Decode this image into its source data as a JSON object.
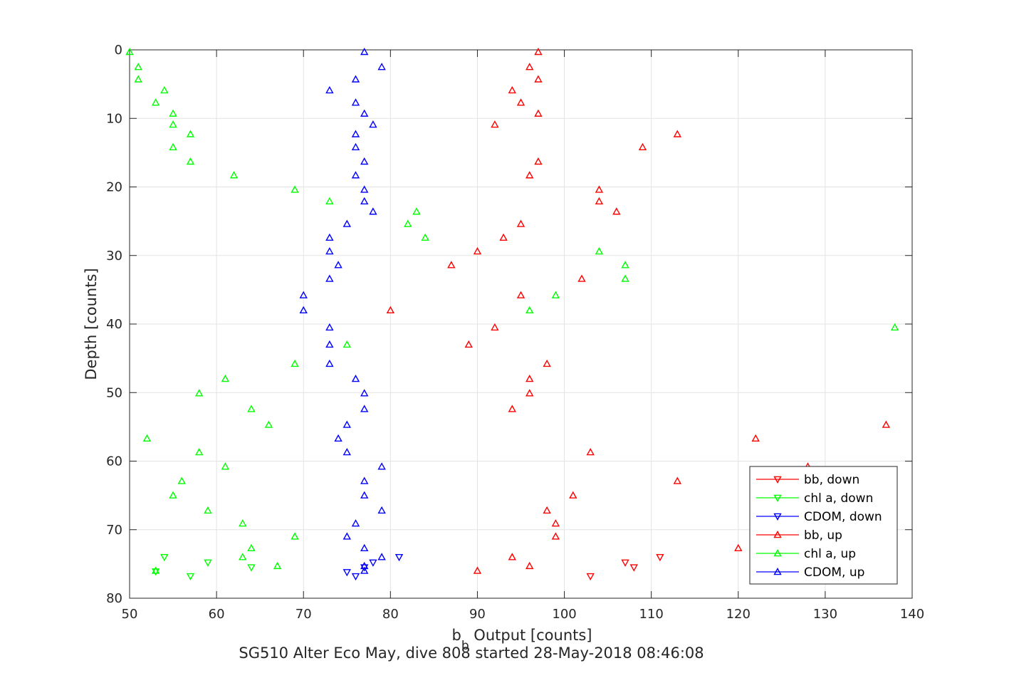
{
  "chart_data": {
    "type": "scatter",
    "title": "SG510 Alter Eco May, dive 808 started 28-May-2018 08:46:08",
    "xlabel_main": "b",
    "xlabel_sub": "b",
    "xlabel_rest": " Output [counts]",
    "ylabel": "Depth [counts]",
    "xlim": [
      50,
      140
    ],
    "ylim": [
      0,
      80
    ],
    "y_reversed": true,
    "grid": true,
    "xticks": [
      50,
      60,
      70,
      80,
      90,
      100,
      110,
      120,
      130,
      140
    ],
    "yticks": [
      0,
      10,
      20,
      30,
      40,
      50,
      60,
      70,
      80
    ],
    "legend_position": "bottom-right",
    "series": [
      {
        "name": "bb, down",
        "color": "#ff0000",
        "marker": "triangle-down",
        "points": [
          [
            103,
            76.8
          ],
          [
            107,
            74.8
          ],
          [
            108,
            75.5
          ],
          [
            111,
            74
          ]
        ]
      },
      {
        "name": "chl a, down",
        "color": "#00ff00",
        "marker": "triangle-down",
        "points": [
          [
            53,
            76.1
          ],
          [
            54,
            74
          ],
          [
            57,
            76.8
          ],
          [
            59,
            74.8
          ],
          [
            64,
            75.5
          ]
        ]
      },
      {
        "name": "CDOM, down",
        "color": "#0000ff",
        "marker": "triangle-down",
        "points": [
          [
            75,
            76.2
          ],
          [
            76,
            76.8
          ],
          [
            77,
            75.5
          ],
          [
            78,
            74.8
          ],
          [
            81,
            74
          ]
        ]
      },
      {
        "name": "bb, up",
        "color": "#ff0000",
        "marker": "triangle-up",
        "points": [
          [
            97,
            0.3
          ],
          [
            96,
            2.5
          ],
          [
            97,
            4.3
          ],
          [
            94,
            5.9
          ],
          [
            95,
            7.7
          ],
          [
            97,
            9.3
          ],
          [
            92,
            10.9
          ],
          [
            113,
            12.3
          ],
          [
            109,
            14.2
          ],
          [
            97,
            16.3
          ],
          [
            96,
            18.3
          ],
          [
            104,
            20.4
          ],
          [
            104,
            22.1
          ],
          [
            106,
            23.6
          ],
          [
            95,
            25.4
          ],
          [
            93,
            27.4
          ],
          [
            90,
            29.4
          ],
          [
            87,
            31.4
          ],
          [
            102,
            33.4
          ],
          [
            95,
            35.8
          ],
          [
            80,
            38
          ],
          [
            92,
            40.5
          ],
          [
            89,
            43
          ],
          [
            98,
            45.8
          ],
          [
            96,
            48
          ],
          [
            96,
            50.1
          ],
          [
            94,
            52.4
          ],
          [
            137,
            54.7
          ],
          [
            122,
            56.7
          ],
          [
            103,
            58.7
          ],
          [
            128,
            60.8
          ],
          [
            113,
            62.9
          ],
          [
            101,
            65
          ],
          [
            98,
            67.2
          ],
          [
            99,
            69.1
          ],
          [
            99,
            71
          ],
          [
            120,
            72.7
          ],
          [
            94,
            74
          ],
          [
            96,
            75.3
          ],
          [
            90,
            76
          ]
        ]
      },
      {
        "name": "chl a, up",
        "color": "#00ff00",
        "marker": "triangle-up",
        "points": [
          [
            50,
            0.3
          ],
          [
            51,
            2.5
          ],
          [
            51,
            4.3
          ],
          [
            54,
            5.9
          ],
          [
            53,
            7.7
          ],
          [
            55,
            9.3
          ],
          [
            55,
            10.9
          ],
          [
            57,
            12.3
          ],
          [
            55,
            14.2
          ],
          [
            57,
            16.3
          ],
          [
            62,
            18.3
          ],
          [
            69,
            20.4
          ],
          [
            73,
            22.1
          ],
          [
            83,
            23.6
          ],
          [
            82,
            25.4
          ],
          [
            84,
            27.4
          ],
          [
            104,
            29.4
          ],
          [
            107,
            31.4
          ],
          [
            107,
            33.4
          ],
          [
            99,
            35.8
          ],
          [
            96,
            38
          ],
          [
            138,
            40.5
          ],
          [
            75,
            43
          ],
          [
            69,
            45.8
          ],
          [
            61,
            48
          ],
          [
            58,
            50.1
          ],
          [
            64,
            52.4
          ],
          [
            66,
            54.7
          ],
          [
            52,
            56.7
          ],
          [
            58,
            58.7
          ],
          [
            61,
            60.8
          ],
          [
            56,
            62.9
          ],
          [
            55,
            65
          ],
          [
            59,
            67.2
          ],
          [
            63,
            69.1
          ],
          [
            69,
            71
          ],
          [
            64,
            72.7
          ],
          [
            63,
            74
          ],
          [
            67,
            75.3
          ],
          [
            53,
            76
          ]
        ]
      },
      {
        "name": "CDOM, up",
        "color": "#0000ff",
        "marker": "triangle-up",
        "points": [
          [
            77,
            0.3
          ],
          [
            79,
            2.5
          ],
          [
            76,
            4.3
          ],
          [
            73,
            5.9
          ],
          [
            76,
            7.7
          ],
          [
            77,
            9.3
          ],
          [
            78,
            10.9
          ],
          [
            76,
            12.3
          ],
          [
            76,
            14.2
          ],
          [
            77,
            16.3
          ],
          [
            76,
            18.3
          ],
          [
            77,
            20.4
          ],
          [
            77,
            22.1
          ],
          [
            78,
            23.6
          ],
          [
            75,
            25.4
          ],
          [
            73,
            27.4
          ],
          [
            73,
            29.4
          ],
          [
            74,
            31.4
          ],
          [
            73,
            33.4
          ],
          [
            70,
            35.8
          ],
          [
            70,
            38
          ],
          [
            73,
            40.5
          ],
          [
            73,
            43
          ],
          [
            73,
            45.8
          ],
          [
            76,
            48
          ],
          [
            77,
            50.1
          ],
          [
            77,
            52.4
          ],
          [
            75,
            54.7
          ],
          [
            74,
            56.7
          ],
          [
            75,
            58.7
          ],
          [
            79,
            60.8
          ],
          [
            77,
            62.9
          ],
          [
            77,
            65
          ],
          [
            79,
            67.2
          ],
          [
            76,
            69.1
          ],
          [
            75,
            71
          ],
          [
            77,
            72.7
          ],
          [
            79,
            74
          ],
          [
            77,
            75.3
          ],
          [
            77,
            76
          ]
        ]
      }
    ]
  }
}
